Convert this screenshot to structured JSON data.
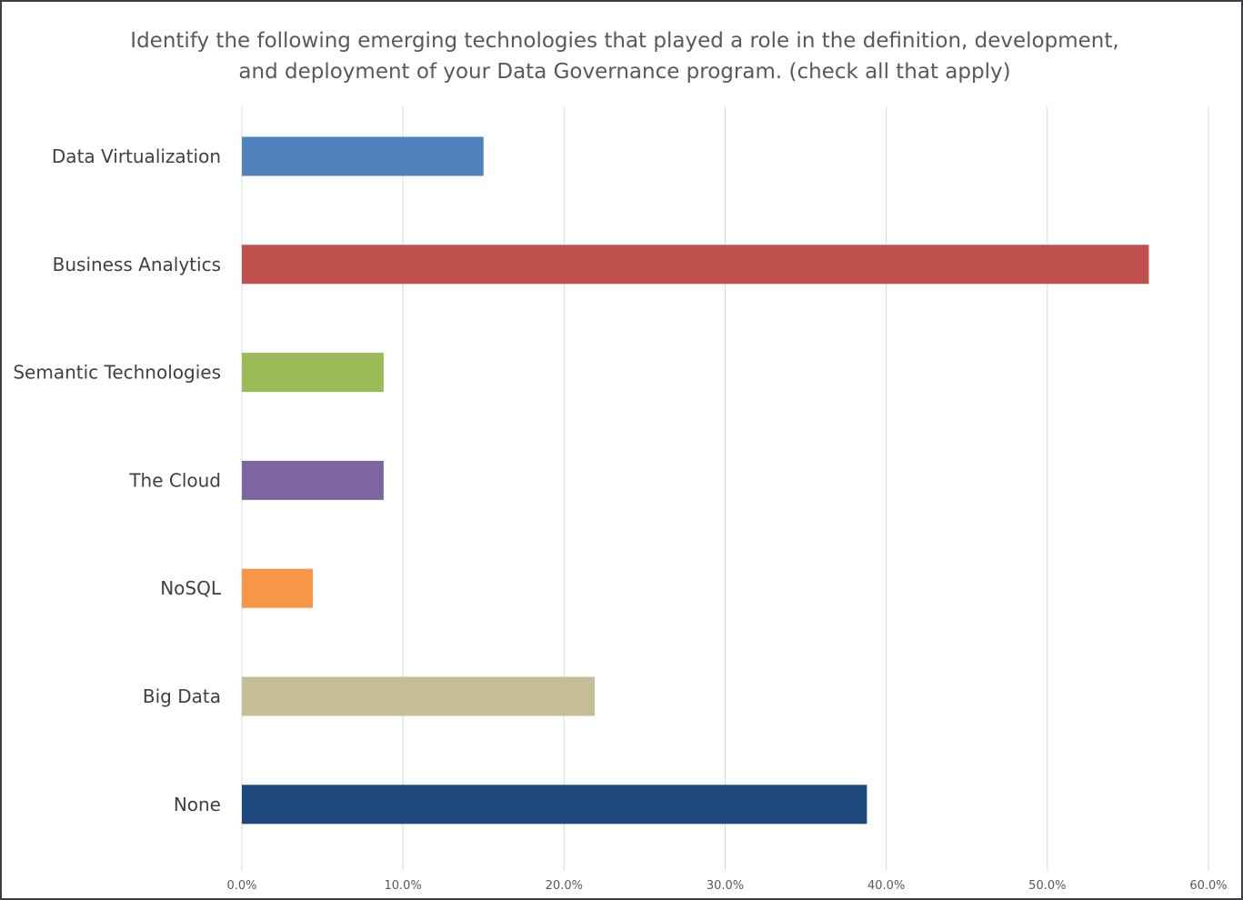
{
  "chart_data": {
    "type": "bar",
    "orientation": "horizontal",
    "title": "Identify the following emerging technologies that played a role in the definition, development,\nand deployment of your Data Governance program. (check all that apply)",
    "categories": [
      "Data Virtualization",
      "Business Analytics",
      "Semantic Technologies",
      "The Cloud",
      "NoSQL",
      "Big Data",
      "None"
    ],
    "values": [
      15.0,
      56.3,
      8.8,
      8.8,
      4.4,
      21.9,
      38.8
    ],
    "colors": [
      "#4f81bd",
      "#c0504d",
      "#9bbb59",
      "#8064a2",
      "#f79646",
      "#c4bd97",
      "#1f497d"
    ],
    "xlim": [
      0,
      60
    ],
    "xticks": [
      "0.0%",
      "10.0%",
      "20.0%",
      "30.0%",
      "40.0%",
      "50.0%",
      "60.0%"
    ],
    "grid": true,
    "legend": "none"
  }
}
